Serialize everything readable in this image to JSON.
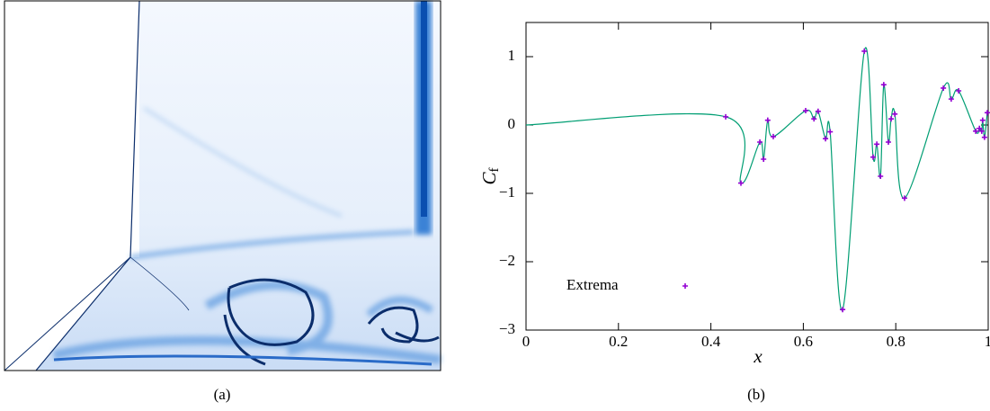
{
  "chart_data": {
    "type": "line",
    "y_label": "C",
    "y_label_subscript": "f",
    "x_label": "x",
    "xlim": [
      0,
      1
    ],
    "ylim": [
      -3,
      1.5
    ],
    "xticks": [
      0,
      0.2,
      0.4,
      0.6,
      0.8,
      1
    ],
    "yticks": [
      {
        "value": -3,
        "label": "−3"
      },
      {
        "value": -2,
        "label": "−2"
      },
      {
        "value": -1,
        "label": "−1"
      },
      0,
      1
    ],
    "legend": "lower left",
    "series": [
      {
        "type": "line",
        "color": "#009e73",
        "x": [
          0,
          0.432,
          0.465,
          0.506,
          0.514,
          0.523,
          0.535,
          0.605,
          0.623,
          0.632,
          0.648,
          0.658,
          0.685,
          0.732,
          0.751,
          0.759,
          0.767,
          0.774,
          0.784,
          0.79,
          0.798,
          0.819,
          0.903,
          0.92,
          0.936,
          0.973,
          0.981,
          0.986,
          0.988,
          0.992,
          0.998
        ],
        "values": [
          0,
          0.12,
          -0.85,
          -0.25,
          -0.5,
          0.07,
          -0.17,
          0.21,
          0.09,
          0.2,
          -0.2,
          -0.1,
          -2.7,
          1.08,
          -0.47,
          -0.28,
          -0.75,
          0.59,
          -0.25,
          0.09,
          0.16,
          -1.07,
          0.54,
          0.38,
          0.5,
          -0.09,
          -0.05,
          -0.09,
          0.07,
          -0.18,
          0.18
        ]
      },
      {
        "type": "scatter",
        "name": "Extrema",
        "color": "#9400d3",
        "x": [
          0.432,
          0.465,
          0.506,
          0.514,
          0.523,
          0.535,
          0.605,
          0.623,
          0.632,
          0.648,
          0.658,
          0.685,
          0.732,
          0.751,
          0.759,
          0.767,
          0.774,
          0.784,
          0.79,
          0.798,
          0.819,
          0.903,
          0.92,
          0.936,
          0.973,
          0.981,
          0.986,
          0.988,
          0.992,
          0.998
        ],
        "values": [
          0.12,
          -0.85,
          -0.25,
          -0.5,
          0.07,
          -0.17,
          0.21,
          0.09,
          0.2,
          -0.2,
          -0.1,
          -2.7,
          1.08,
          -0.47,
          -0.28,
          -0.75,
          0.59,
          -0.25,
          0.09,
          0.16,
          -1.07,
          0.54,
          0.38,
          0.5,
          -0.09,
          -0.05,
          -0.09,
          0.07,
          -0.18,
          0.18
        ]
      }
    ]
  },
  "captions": [
    "(a)",
    "(b)"
  ]
}
